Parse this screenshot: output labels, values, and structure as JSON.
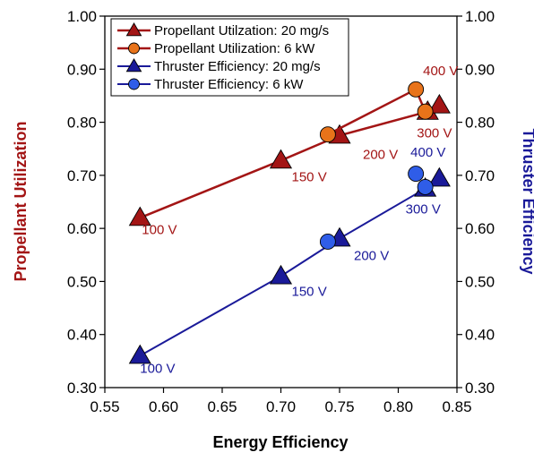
{
  "chart_data": {
    "type": "scatter",
    "xlabel": "Energy Efficiency",
    "ylabel_left": "Propellant Utilization",
    "ylabel_right": "Thruster Efficiency",
    "xlim": [
      0.55,
      0.85
    ],
    "ylim": [
      0.3,
      1.0
    ],
    "xticks": [
      "0.55",
      "0.60",
      "0.65",
      "0.70",
      "0.75",
      "0.80",
      "0.85"
    ],
    "yticks": [
      "0.30",
      "0.40",
      "0.50",
      "0.60",
      "0.70",
      "0.80",
      "0.90",
      "1.00"
    ],
    "grid": false,
    "legend_position": "top-left",
    "colors": {
      "propellant": "#a31515",
      "propellant_6kw": "#e8731a",
      "thruster": "#1a1a99",
      "thruster_6kw": "#2f5de8",
      "left_axis_title": "#a31515",
      "right_axis_title": "#1a1a99"
    },
    "series": [
      {
        "name": "Propellant Utilzation:  20 mg/s",
        "marker": "triangle",
        "style": "line",
        "x": [
          0.58,
          0.7,
          0.75,
          0.825,
          0.835
        ],
        "y": [
          0.62,
          0.728,
          0.775,
          0.82,
          0.832
        ],
        "labels": [
          "100 V",
          "150 V",
          "200 V",
          "300 V",
          ""
        ]
      },
      {
        "name": "Propellant Utilization:  6 kW",
        "marker": "circle",
        "style": "line",
        "x": [
          0.74,
          0.815,
          0.823
        ],
        "y": [
          0.777,
          0.862,
          0.82
        ],
        "labels": [
          "",
          "400 V",
          ""
        ]
      },
      {
        "name": "Thruster Efficiency:  20 mg/s",
        "marker": "triangle",
        "style": "line",
        "x": [
          0.58,
          0.7,
          0.75,
          0.823,
          0.835
        ],
        "y": [
          0.36,
          0.51,
          0.581,
          0.675,
          0.694
        ],
        "labels": [
          "100 V",
          "150 V",
          "200 V",
          "300 V",
          ""
        ]
      },
      {
        "name": "Thruster Efficiency:  6 kW",
        "marker": "circle",
        "style": "markers",
        "x": [
          0.74,
          0.815,
          0.823
        ],
        "y": [
          0.575,
          0.703,
          0.678
        ],
        "labels": [
          "",
          "400 V",
          ""
        ]
      }
    ]
  }
}
